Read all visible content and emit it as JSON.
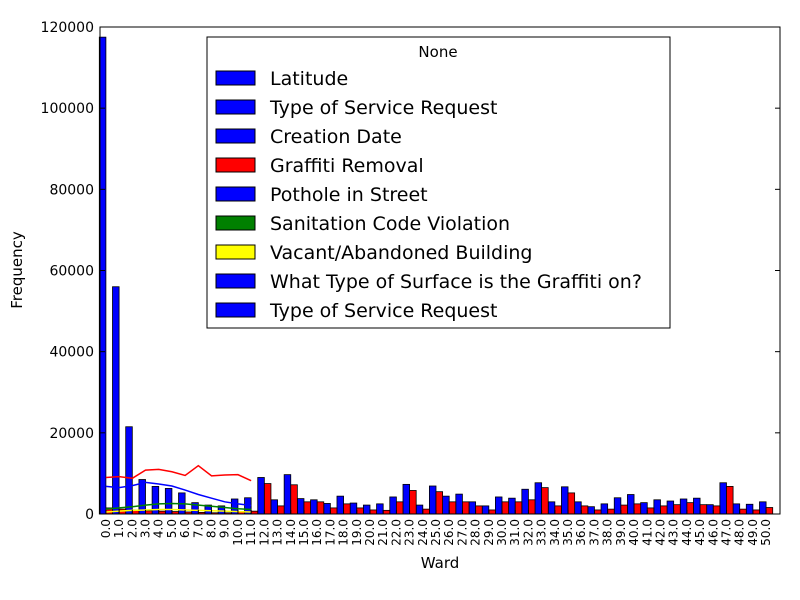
{
  "chart_data": {
    "type": "bar",
    "xlabel": "Ward",
    "ylabel": "Frequency",
    "ylim": [
      0,
      120000
    ],
    "yticks": [
      "0",
      "20000",
      "40000",
      "60000",
      "80000",
      "100000",
      "120000"
    ],
    "categories": [
      "0.0",
      "1.0",
      "2.0",
      "3.0",
      "4.0",
      "5.0",
      "6.0",
      "7.0",
      "8.0",
      "9.0",
      "10.0",
      "11.0",
      "12.0",
      "13.0",
      "14.0",
      "15.0",
      "16.0",
      "17.0",
      "18.0",
      "19.0",
      "20.0",
      "21.0",
      "22.0",
      "23.0",
      "24.0",
      "25.0",
      "26.0",
      "27.0",
      "28.0",
      "29.0",
      "30.0",
      "31.0",
      "32.0",
      "33.0",
      "34.0",
      "35.0",
      "36.0",
      "37.0",
      "38.0",
      "39.0",
      "40.0",
      "41.0",
      "42.0",
      "43.0",
      "44.0",
      "45.0",
      "46.0",
      "47.0",
      "48.0",
      "49.0",
      "50.0"
    ],
    "bar_series": [
      {
        "color": "#0000ff",
        "values": [
          117500,
          56000,
          21500,
          8500,
          6800,
          6300,
          5200,
          2800,
          2200,
          2000,
          3700,
          4000,
          9000,
          3500,
          9700,
          3800,
          3500,
          2600,
          4400,
          2700,
          2200,
          2500,
          4200,
          7300,
          2200,
          6900,
          4400,
          4900,
          3000,
          2000,
          4200,
          3900,
          6100,
          7700,
          3000,
          6700,
          3000,
          1800,
          2500,
          4000,
          4800,
          2800,
          3500,
          3200,
          3700,
          3900,
          2300,
          7700,
          2500,
          2400,
          3000
        ]
      },
      {
        "color": "#ff0000",
        "values": [
          1500,
          1200,
          1000,
          800,
          700,
          600,
          500,
          400,
          300,
          300,
          600,
          700,
          7500,
          2000,
          7200,
          3000,
          3000,
          1500,
          2500,
          1500,
          1000,
          900,
          3000,
          5800,
          1200,
          5500,
          3000,
          3000,
          2000,
          1000,
          3000,
          3000,
          3500,
          6500,
          2000,
          5200,
          2000,
          1000,
          1200,
          2200,
          2500,
          1500,
          2000,
          2300,
          2800,
          2300,
          2000,
          6800,
          1200,
          1000,
          1600
        ]
      }
    ],
    "line_series": [
      {
        "color": "#ff0000",
        "values": [
          9000,
          9200,
          8800,
          10800,
          11000,
          10400,
          9500,
          11900,
          9400,
          9600,
          9700,
          8200
        ]
      },
      {
        "color": "#0000ff",
        "values": [
          6800,
          6500,
          7000,
          7800,
          7400,
          6900,
          5900,
          4800,
          3900,
          3000,
          2500,
          2100
        ]
      },
      {
        "color": "#008000",
        "values": [
          1200,
          1500,
          1800,
          2200,
          2500,
          2600,
          2500,
          2200,
          1900,
          1600,
          1300,
          1100
        ]
      },
      {
        "color": "#ffff00",
        "values": [
          500,
          700,
          900,
          1000,
          1100,
          1100,
          1000,
          900,
          800,
          700,
          600,
          500
        ]
      }
    ],
    "legend": {
      "title": "None",
      "placement": "top-center",
      "entries": [
        {
          "label": "Latitude",
          "color": "#0000ff"
        },
        {
          "label": "Type of Service Request",
          "color": "#0000ff"
        },
        {
          "label": "Creation Date",
          "color": "#0000ff"
        },
        {
          "label": "Graffiti Removal",
          "color": "#ff0000"
        },
        {
          "label": "Pothole in Street",
          "color": "#0000ff"
        },
        {
          "label": "Sanitation Code Violation",
          "color": "#008000"
        },
        {
          "label": "Vacant/Abandoned Building",
          "color": "#ffff00"
        },
        {
          "label": "What Type of Surface is the Graffiti on?",
          "color": "#0000ff"
        },
        {
          "label": "Type of Service Request",
          "color": "#0000ff"
        }
      ]
    }
  }
}
